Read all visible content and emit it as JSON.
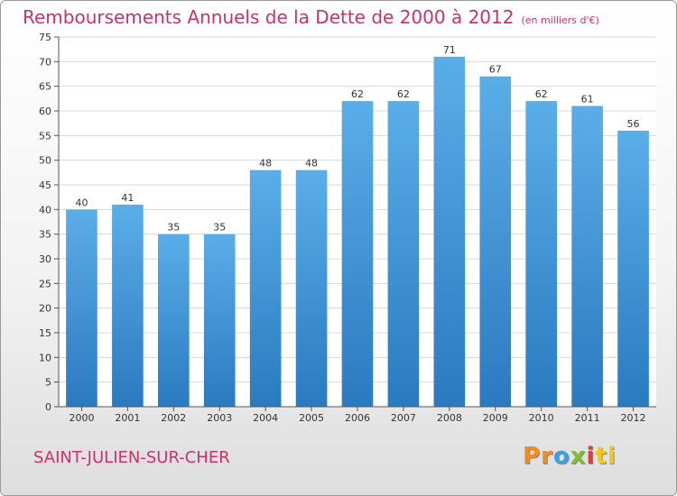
{
  "header": {
    "title": "Remboursements Annuels de la Dette de 2000 à 2012",
    "unit": "(en milliers d'€)"
  },
  "footer": {
    "commune": "SAINT-JULIEN-SUR-CHER",
    "logo": [
      "Pr",
      "o",
      "x",
      "i",
      "ti"
    ]
  },
  "colors": {
    "title": "#c8336a",
    "bar_top": "#5aaee8",
    "bar_bottom": "#2a7ac0",
    "grid": "#d8d8d8"
  },
  "chart_data": {
    "type": "bar",
    "title": "Remboursements Annuels de la Dette de 2000 à 2012",
    "categories": [
      "2000",
      "2001",
      "2002",
      "2003",
      "2004",
      "2005",
      "2006",
      "2007",
      "2008",
      "2009",
      "2010",
      "2011",
      "2012"
    ],
    "values": [
      40,
      41,
      35,
      35,
      48,
      48,
      62,
      62,
      71,
      67,
      62,
      61,
      56
    ],
    "ylim": [
      0,
      75
    ],
    "ytick_step": 5,
    "grid": true,
    "legend": "none"
  }
}
